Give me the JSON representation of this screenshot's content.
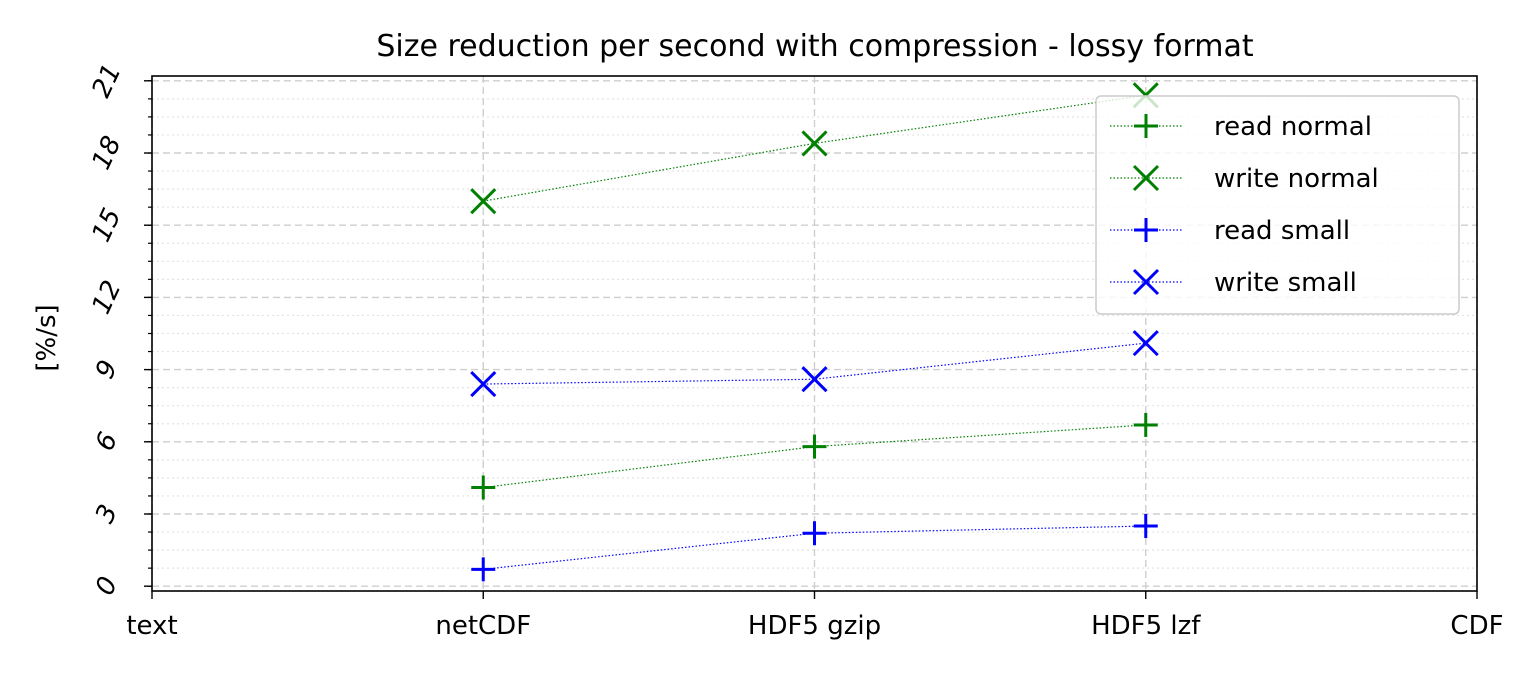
{
  "chart_data": {
    "type": "line",
    "title": "Size reduction per second with compression - lossy format",
    "xlabel": "",
    "ylabel": "[%/s]",
    "categories": [
      "text",
      "netCDF",
      "HDF5 gzip",
      "HDF5 lzf",
      "CDF"
    ],
    "x_tick_labels": [
      "text",
      "netCDF",
      "HDF5 gzip",
      "HDF5 lzf",
      "CDF"
    ],
    "y_tick_labels": [
      "0",
      "3",
      "6",
      "9",
      "12",
      "15",
      "18",
      "21"
    ],
    "ylim": [
      -0.2,
      21.2
    ],
    "grid": true,
    "legend_position": "upper right",
    "series": [
      {
        "name": "read normal",
        "marker": "+",
        "color": "#008000",
        "points": [
          {
            "x": "netCDF",
            "y": 4.1
          },
          {
            "x": "HDF5 gzip",
            "y": 5.8
          },
          {
            "x": "HDF5 lzf",
            "y": 6.7
          }
        ]
      },
      {
        "name": "write normal",
        "marker": "x",
        "color": "#008000",
        "points": [
          {
            "x": "netCDF",
            "y": 16.0
          },
          {
            "x": "HDF5 gzip",
            "y": 18.4
          },
          {
            "x": "HDF5 lzf",
            "y": 20.4
          }
        ]
      },
      {
        "name": "read small",
        "marker": "+",
        "color": "#0000ff",
        "points": [
          {
            "x": "netCDF",
            "y": 0.7
          },
          {
            "x": "HDF5 gzip",
            "y": 2.2
          },
          {
            "x": "HDF5 lzf",
            "y": 2.5
          }
        ]
      },
      {
        "name": "write small",
        "marker": "x",
        "color": "#0000ff",
        "points": [
          {
            "x": "netCDF",
            "y": 8.4
          },
          {
            "x": "HDF5 gzip",
            "y": 8.6
          },
          {
            "x": "HDF5 lzf",
            "y": 10.1
          }
        ]
      }
    ]
  }
}
